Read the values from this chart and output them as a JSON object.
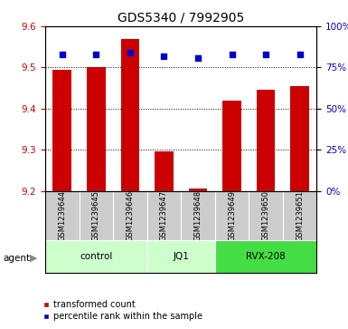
{
  "title": "GDS5340 / 7992905",
  "samples": [
    "GSM1239644",
    "GSM1239645",
    "GSM1239646",
    "GSM1239647",
    "GSM1239648",
    "GSM1239649",
    "GSM1239650",
    "GSM1239651"
  ],
  "bar_values": [
    9.495,
    9.5,
    9.57,
    9.295,
    9.205,
    9.42,
    9.445,
    9.455
  ],
  "percentile_values": [
    83,
    83,
    84,
    82,
    81,
    83,
    83,
    83
  ],
  "bar_bottom": 9.2,
  "ylim": [
    9.2,
    9.6
  ],
  "y2lim": [
    0,
    100
  ],
  "yticks": [
    9.2,
    9.3,
    9.4,
    9.5,
    9.6
  ],
  "y2ticks": [
    0,
    25,
    50,
    75,
    100
  ],
  "bar_color": "#cc0000",
  "dot_color": "#0000cc",
  "group_defs": [
    {
      "label": "control",
      "start": 0,
      "end": 2,
      "color": "#ccffcc"
    },
    {
      "label": "JQ1",
      "start": 3,
      "end": 4,
      "color": "#ccffcc"
    },
    {
      "label": "RVX-208",
      "start": 5,
      "end": 7,
      "color": "#44dd44"
    }
  ],
  "agent_label": "agent",
  "legend_bar_label": "transformed count",
  "legend_dot_label": "percentile rank within the sample",
  "plot_bg_color": "#ffffff",
  "ylabel_left_color": "#cc0000",
  "ylabel_right_color": "#0000cc",
  "bar_width": 0.55,
  "title_fontsize": 10,
  "tick_fontsize": 7.5,
  "sample_fontsize": 6.0,
  "group_fontsize": 7.5,
  "legend_fontsize": 7
}
